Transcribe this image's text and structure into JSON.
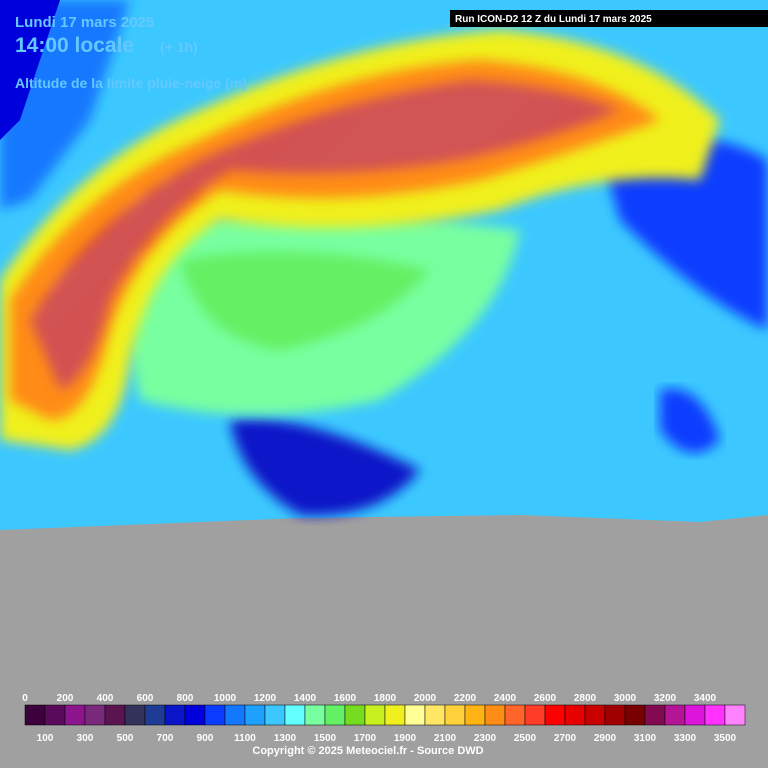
{
  "header": {
    "date": "Lundi 17 mars 2025",
    "time": "14:00 locale",
    "offset": "(+ 1h)",
    "parameter": "Altitude de la limite pluie-neige (m)",
    "run": "Run ICON-D2 12 Z du Lundi 17 mars 2025"
  },
  "legend": {
    "labels": [
      0,
      100,
      200,
      300,
      400,
      500,
      600,
      700,
      800,
      900,
      1000,
      1100,
      1200,
      1300,
      1400,
      1500,
      1600,
      1700,
      1800,
      1900,
      2000,
      2100,
      2200,
      2300,
      2400,
      2500,
      2600,
      2700,
      2800,
      2900,
      3000,
      3100,
      3200,
      3300,
      3400,
      3500
    ],
    "colors": [
      "#3c003c",
      "#5a0a5a",
      "#8c148c",
      "#7a2a7a",
      "#5a1450",
      "#32325a",
      "#1e3c96",
      "#0a14c8",
      "#0000dc",
      "#0a3cff",
      "#1478ff",
      "#1ea0ff",
      "#3cc8ff",
      "#64ffff",
      "#78ffa0",
      "#64f064",
      "#78dc1e",
      "#c8f01e",
      "#f0f01e",
      "#ffff96",
      "#ffe664",
      "#ffd23c",
      "#ffb414",
      "#ff8c14",
      "#ff6428",
      "#ff3c28",
      "#ff0000",
      "#e60000",
      "#c80000",
      "#a00000",
      "#780000",
      "#820a50",
      "#b41496",
      "#dc14dc",
      "#ff32ff",
      "#ff82ff"
    ]
  },
  "footer": {
    "copyright": "Copyright © 2025 Meteociel.fr - Source DWD"
  }
}
